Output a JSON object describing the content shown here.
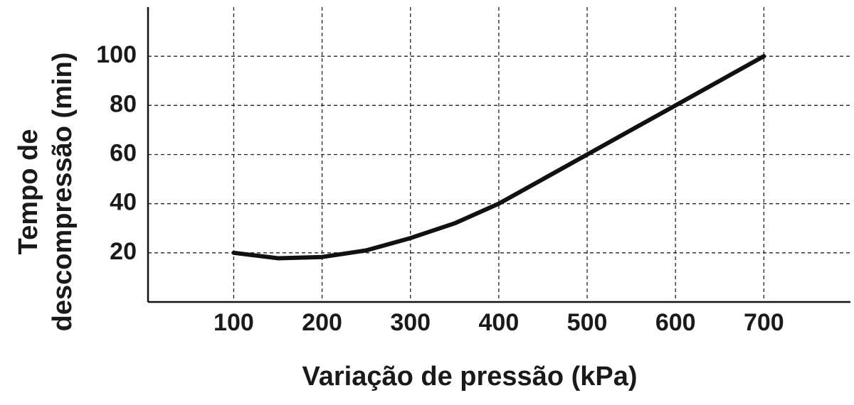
{
  "chart_data": {
    "type": "line",
    "x_label": "Variação de pressão (kPa)",
    "y_label": [
      "Tempo de",
      "descompressão  (min)"
    ],
    "x": [
      100,
      150,
      200,
      250,
      300,
      350,
      400,
      450,
      500,
      550,
      600,
      650,
      700
    ],
    "series": [
      {
        "color": "#111111",
        "values": [
          20,
          17.8,
          18.3,
          21,
          26,
          32,
          40,
          50,
          60,
          70,
          80,
          90,
          100
        ]
      }
    ],
    "xlim": [
      3,
      798
    ],
    "ylim": [
      0,
      120
    ],
    "xticks": [
      100,
      200,
      300,
      400,
      500,
      600,
      700
    ],
    "yticks": [
      20,
      40,
      60,
      80,
      100
    ],
    "grid": true
  }
}
